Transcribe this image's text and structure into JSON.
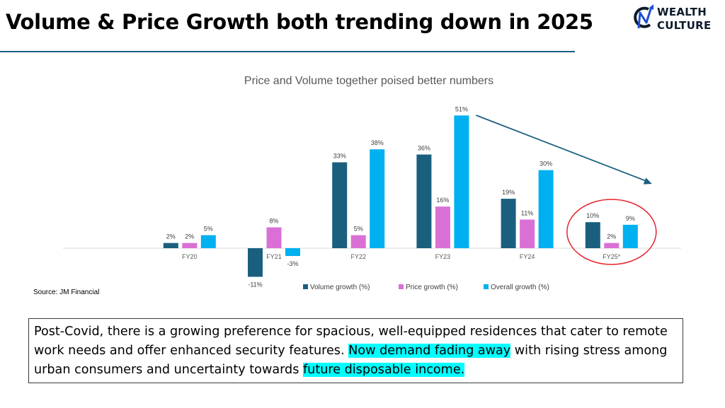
{
  "slide": {
    "title": "Volume & Price Growth both trending down in 2025"
  },
  "logo": {
    "line1": "WEALTH",
    "line2": "CULTURE",
    "icon": "wealth-culture-logo-icon"
  },
  "source": "Source: JM Financial",
  "note": {
    "part1": "Post-Covid, there is a growing preference for spacious, well-equipped residences that cater to remote work needs and offer enhanced security features.  ",
    "highlight1": "Now demand fading away",
    "part2": " with rising stress among urban consumers and uncertainty towards ",
    "highlight2": "future disposable income."
  },
  "colors": {
    "volume": "#1b5f7f",
    "price": "#da70d6",
    "overall": "#00b0f0",
    "trend_arrow": "#1b5f7f",
    "circle": "#e8202a",
    "highlight": "#00ffff"
  },
  "chart_data": {
    "type": "bar",
    "title": "Price and Volume together poised better numbers",
    "categories": [
      "FY20",
      "FY21",
      "FY22",
      "FY23",
      "FY24",
      "FY25*"
    ],
    "series": [
      {
        "name": "Volume growth (%)",
        "values": [
          2,
          -11,
          33,
          36,
          19,
          10
        ]
      },
      {
        "name": "Price growth (%)",
        "values": [
          2,
          8,
          5,
          16,
          11,
          2
        ]
      },
      {
        "name": "Overall growth (%)",
        "values": [
          5,
          -3,
          38,
          51,
          30,
          9
        ]
      }
    ],
    "data_labels": [
      [
        "2%",
        "-11%",
        "33%",
        "36%",
        "19%",
        "10%"
      ],
      [
        "2%",
        "8%",
        "5%",
        "16%",
        "11%",
        "2%"
      ],
      [
        "5%",
        "-3%",
        "38%",
        "51%",
        "30%",
        "9%"
      ]
    ],
    "legend_position": "bottom",
    "grid": false,
    "annotations": {
      "trend_arrow": "downward arrow from FY23 peak toward FY25*",
      "highlight_circle": "FY25*"
    }
  }
}
